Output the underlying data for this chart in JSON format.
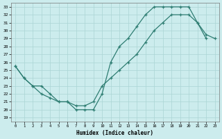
{
  "xlabel": "Humidex (Indice chaleur)",
  "bg_color": "#cceced",
  "line_color": "#2e7d72",
  "grid_color": "#aad4d4",
  "xlim": [
    -0.5,
    23.5
  ],
  "ylim": [
    18.5,
    33.5
  ],
  "xticks": [
    0,
    1,
    2,
    3,
    4,
    5,
    6,
    7,
    8,
    9,
    10,
    11,
    12,
    13,
    14,
    15,
    16,
    17,
    18,
    19,
    20,
    21,
    22,
    23
  ],
  "yticks": [
    19,
    20,
    21,
    22,
    23,
    24,
    25,
    26,
    27,
    28,
    29,
    30,
    31,
    32,
    33
  ],
  "curve1_x": [
    0,
    1,
    2,
    3,
    4,
    5,
    6,
    7,
    8,
    9,
    10,
    11,
    12,
    13,
    14,
    15,
    16,
    17,
    18,
    19,
    20,
    21,
    22
  ],
  "curve1_y": [
    25.5,
    24,
    23,
    23,
    22,
    21,
    21,
    20,
    20,
    20,
    22,
    26,
    28,
    29,
    30.5,
    32,
    33,
    33,
    33,
    33,
    33,
    31,
    29
  ],
  "curve2_x": [
    0,
    1,
    2,
    3,
    4,
    5,
    6,
    7,
    8,
    9,
    10,
    11,
    12,
    13,
    14,
    15,
    16,
    17,
    18,
    19,
    20,
    21,
    22,
    23
  ],
  "curve2_y": [
    25.5,
    24,
    23,
    22,
    21.5,
    21,
    21,
    20.5,
    20.5,
    21,
    23,
    24,
    25,
    26,
    27,
    28.5,
    30,
    31,
    32,
    32,
    32,
    31,
    29.5,
    29
  ]
}
